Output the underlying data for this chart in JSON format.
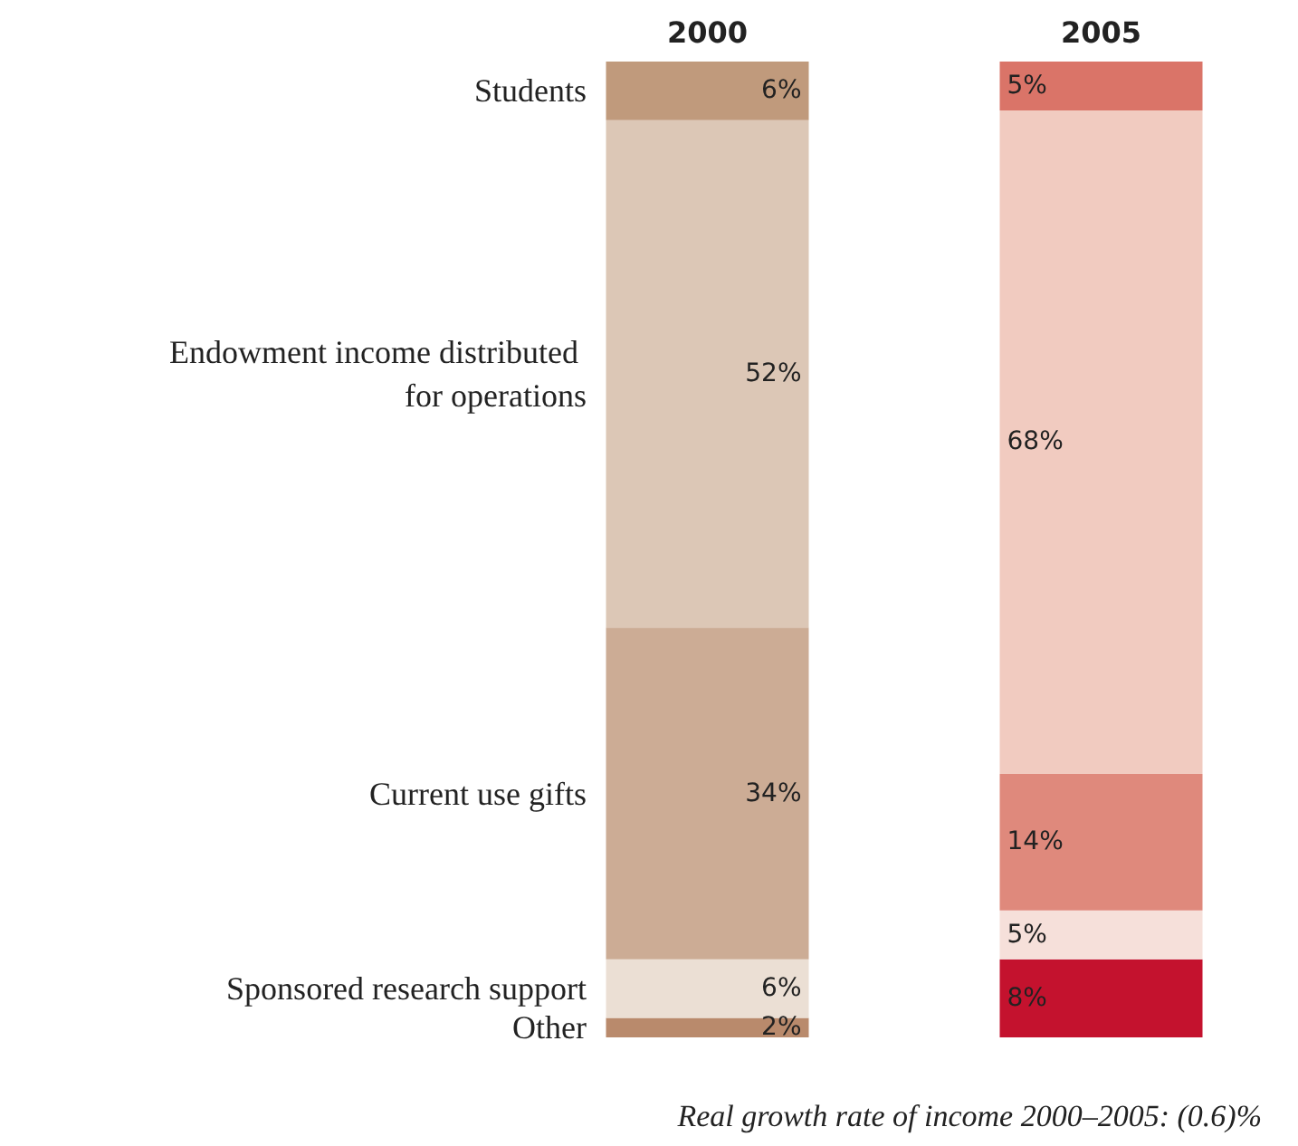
{
  "chart_data": {
    "type": "bar",
    "stacked": true,
    "categories": [
      "2000",
      "2005"
    ],
    "tick_labels": "x",
    "legend": false,
    "series": [
      {
        "name": "Other",
        "colors": [
          "#b98a6c",
          "#c4122e"
        ],
        "values": [
          2,
          8
        ],
        "value_labels": [
          "2%",
          "8%"
        ]
      },
      {
        "name": "Sponsored research support",
        "colors": [
          "#ebdfd4",
          "#f6e0da"
        ],
        "values": [
          6,
          5
        ],
        "value_labels": [
          "6%",
          "5%"
        ]
      },
      {
        "name": "Current use gifts",
        "colors": [
          "#ccac95",
          "#df897c"
        ],
        "values": [
          34,
          14
        ],
        "value_labels": [
          "34%",
          "14%"
        ]
      },
      {
        "name": "Endowment income distributed for operations",
        "colors": [
          "#dcc7b6",
          "#f1cbc0"
        ],
        "values": [
          52,
          68
        ],
        "value_labels": [
          "52%",
          "68%"
        ]
      },
      {
        "name": "Students",
        "colors": [
          "#c09a7c",
          "#da7468"
        ],
        "values": [
          6,
          5
        ],
        "value_labels": [
          "6%",
          "5%"
        ]
      }
    ],
    "annotations": [
      "Real growth rate of income 2000–2005: (0.6)%"
    ]
  }
}
